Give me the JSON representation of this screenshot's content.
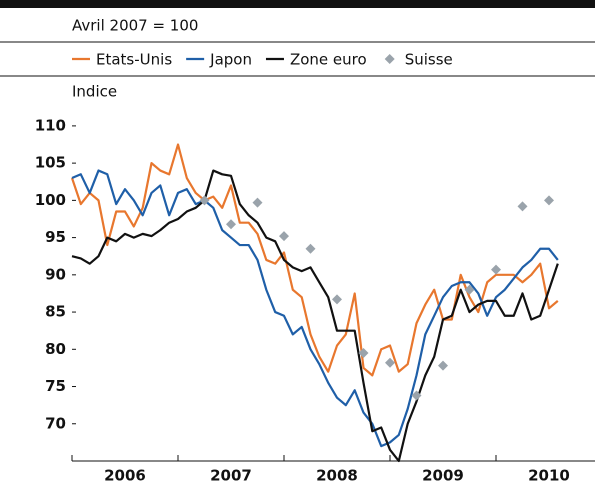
{
  "chart_data": {
    "type": "line",
    "subtitle": "Avril 2007 = 100",
    "ylabel": "Indice",
    "xlim": [
      2006,
      2011
    ],
    "xticks": [
      {
        "value": 2006.5,
        "label": "2006"
      },
      {
        "value": 2007.5,
        "label": "2007"
      },
      {
        "value": 2008.5,
        "label": "2008"
      },
      {
        "value": 2009.5,
        "label": "2009"
      },
      {
        "value": 2010.5,
        "label": "2010"
      }
    ],
    "ylim": [
      65,
      112
    ],
    "yticks": [
      70,
      75,
      80,
      85,
      90,
      95,
      100,
      105,
      110
    ],
    "x": [
      2006,
      2006.083,
      2006.167,
      2006.25,
      2006.333,
      2006.417,
      2006.5,
      2006.583,
      2006.667,
      2006.75,
      2006.833,
      2006.917,
      2007,
      2007.083,
      2007.167,
      2007.25,
      2007.333,
      2007.417,
      2007.5,
      2007.583,
      2007.667,
      2007.75,
      2007.833,
      2007.917,
      2008,
      2008.083,
      2008.167,
      2008.25,
      2008.333,
      2008.417,
      2008.5,
      2008.583,
      2008.667,
      2008.75,
      2008.833,
      2008.917,
      2009,
      2009.083,
      2009.167,
      2009.25,
      2009.333,
      2009.417,
      2009.5,
      2009.583,
      2009.667,
      2009.75,
      2009.833,
      2009.917,
      2010,
      2010.083,
      2010.167,
      2010.25,
      2010.333,
      2010.417,
      2010.5,
      2010.583
    ],
    "series": [
      {
        "name": "Etats-Unis",
        "color": "#e8772e",
        "values": [
          103,
          99.5,
          101,
          100,
          94,
          98.5,
          98.5,
          96.5,
          99,
          105,
          104,
          103.5,
          107.5,
          103,
          101,
          100,
          100.5,
          99,
          102,
          97,
          97,
          95.5,
          92,
          91.5,
          93,
          88,
          87,
          82,
          79,
          77,
          80.5,
          82,
          87.5,
          77.5,
          76.5,
          80,
          80.5,
          77,
          78,
          83.5,
          86,
          88,
          84,
          84,
          90,
          87,
          85,
          89,
          90,
          90,
          90,
          89,
          90,
          91.5,
          85.5,
          86.5
        ]
      },
      {
        "name": "Japon",
        "color": "#1f5fa8",
        "values": [
          103,
          103.5,
          101,
          104,
          103.5,
          99.5,
          101.5,
          100,
          98,
          101,
          102,
          98,
          101,
          101.5,
          99.5,
          100,
          99,
          96,
          95,
          94,
          94,
          92,
          88,
          85,
          84.5,
          82,
          83,
          80,
          78,
          75.5,
          73.5,
          72.5,
          74.5,
          71.5,
          70,
          67,
          67.5,
          68.5,
          72,
          76.5,
          82,
          84.5,
          87,
          88.5,
          89,
          89,
          87.5,
          84.5,
          87,
          88,
          89.5,
          91,
          92,
          93.5,
          93.5,
          92
        ]
      },
      {
        "name": "Zone euro",
        "color": "#111111",
        "values": [
          92.5,
          92.2,
          91.5,
          92.5,
          95,
          94.5,
          95.5,
          95,
          95.5,
          95.2,
          96,
          97,
          97.5,
          98.5,
          99,
          100,
          104,
          103.5,
          103.3,
          99.5,
          98,
          97,
          95,
          94.5,
          92,
          91,
          90.5,
          91,
          89,
          87,
          82.5,
          82.5,
          82.5,
          75.5,
          69,
          69.5,
          66.5,
          65,
          70,
          73,
          76.5,
          79,
          84,
          84.5,
          88,
          85,
          86,
          86.5,
          86.5,
          84.5,
          84.5,
          87.5,
          84,
          84.5,
          88,
          91.5
        ]
      },
      {
        "name": "Suisse",
        "color": "#9aa3ab",
        "marker": "diamond",
        "x": [
          2007.25,
          2007.5,
          2007.75,
          2008,
          2008.25,
          2008.5,
          2008.75,
          2009,
          2009.25,
          2009.5,
          2009.75,
          2010,
          2010.25,
          2010.5
        ],
        "values": [
          100,
          96.8,
          99.7,
          95.2,
          93.5,
          86.7,
          79.5,
          78.2,
          73.8,
          77.8,
          88,
          90.7,
          99.2,
          100
        ]
      }
    ]
  }
}
